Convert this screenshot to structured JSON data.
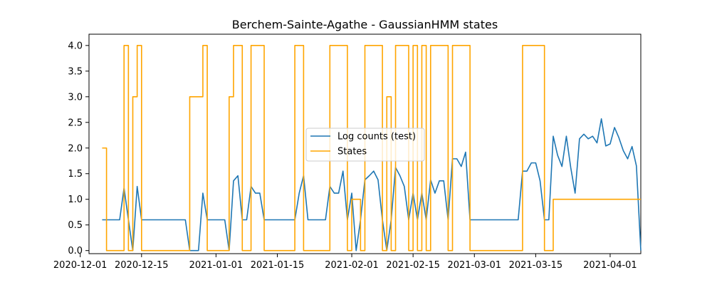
{
  "chart_data": {
    "type": "line",
    "title": "Berchem-Sainte-Agathe - GaussianHMM states",
    "xlabel": "",
    "ylabel": "",
    "xlim": [
      "2020-12-03",
      "2021-04-08"
    ],
    "ylim": [
      -0.06,
      4.22
    ],
    "grid": false,
    "legend_placement": "center",
    "x_ticks": [
      "2020-12-01",
      "2020-12-15",
      "2021-01-01",
      "2021-01-15",
      "2021-02-01",
      "2021-02-15",
      "2021-03-01",
      "2021-03-15",
      "2021-04-01"
    ],
    "y_ticks": [
      "0.0",
      "0.5",
      "1.0",
      "1.5",
      "2.0",
      "2.5",
      "3.0",
      "3.5",
      "4.0"
    ],
    "series": [
      {
        "name": "Log counts (test)",
        "color": "#1f77b4",
        "style": "line",
        "points": [
          [
            "2020-12-06",
            0.6
          ],
          [
            "2020-12-07",
            0.6
          ],
          [
            "2020-12-08",
            0.6
          ],
          [
            "2020-12-09",
            0.6
          ],
          [
            "2020-12-10",
            0.6
          ],
          [
            "2020-12-11",
            1.22
          ],
          [
            "2020-12-12",
            0.6
          ],
          [
            "2020-12-13",
            0.0
          ],
          [
            "2020-12-14",
            1.25
          ],
          [
            "2020-12-15",
            0.6
          ],
          [
            "2020-12-16",
            0.6
          ],
          [
            "2020-12-17",
            0.6
          ],
          [
            "2020-12-18",
            0.6
          ],
          [
            "2020-12-19",
            0.6
          ],
          [
            "2020-12-20",
            0.6
          ],
          [
            "2020-12-21",
            0.6
          ],
          [
            "2020-12-22",
            0.6
          ],
          [
            "2020-12-23",
            0.6
          ],
          [
            "2020-12-24",
            0.6
          ],
          [
            "2020-12-25",
            0.6
          ],
          [
            "2020-12-26",
            0.0
          ],
          [
            "2020-12-27",
            0.0
          ],
          [
            "2020-12-28",
            0.0
          ],
          [
            "2020-12-29",
            1.12
          ],
          [
            "2020-12-30",
            0.6
          ],
          [
            "2020-12-31",
            0.6
          ],
          [
            "2021-01-01",
            0.6
          ],
          [
            "2021-01-02",
            0.6
          ],
          [
            "2021-01-03",
            0.6
          ],
          [
            "2021-01-04",
            0.0
          ],
          [
            "2021-01-05",
            1.36
          ],
          [
            "2021-01-06",
            1.46
          ],
          [
            "2021-01-07",
            0.6
          ],
          [
            "2021-01-08",
            0.6
          ],
          [
            "2021-01-09",
            1.25
          ],
          [
            "2021-01-10",
            1.12
          ],
          [
            "2021-01-11",
            1.12
          ],
          [
            "2021-01-12",
            0.6
          ],
          [
            "2021-01-13",
            0.6
          ],
          [
            "2021-01-14",
            0.6
          ],
          [
            "2021-01-15",
            0.6
          ],
          [
            "2021-01-16",
            0.6
          ],
          [
            "2021-01-17",
            0.6
          ],
          [
            "2021-01-18",
            0.6
          ],
          [
            "2021-01-19",
            0.6
          ],
          [
            "2021-01-20",
            1.12
          ],
          [
            "2021-01-21",
            1.46
          ],
          [
            "2021-01-22",
            0.6
          ],
          [
            "2021-01-23",
            0.6
          ],
          [
            "2021-01-24",
            0.6
          ],
          [
            "2021-01-25",
            0.6
          ],
          [
            "2021-01-26",
            0.6
          ],
          [
            "2021-01-27",
            1.25
          ],
          [
            "2021-01-28",
            1.12
          ],
          [
            "2021-01-29",
            1.12
          ],
          [
            "2021-01-30",
            1.55
          ],
          [
            "2021-01-31",
            0.6
          ],
          [
            "2021-02-01",
            1.12
          ],
          [
            "2021-02-02",
            0.0
          ],
          [
            "2021-02-03",
            0.6
          ],
          [
            "2021-02-04",
            1.38
          ],
          [
            "2021-02-05",
            1.46
          ],
          [
            "2021-02-06",
            1.55
          ],
          [
            "2021-02-07",
            1.38
          ],
          [
            "2021-02-08",
            0.6
          ],
          [
            "2021-02-09",
            0.0
          ],
          [
            "2021-02-10",
            0.6
          ],
          [
            "2021-02-11",
            1.62
          ],
          [
            "2021-02-12",
            1.46
          ],
          [
            "2021-02-13",
            1.25
          ],
          [
            "2021-02-14",
            0.6
          ],
          [
            "2021-02-15",
            1.12
          ],
          [
            "2021-02-16",
            0.6
          ],
          [
            "2021-02-17",
            1.12
          ],
          [
            "2021-02-18",
            0.6
          ],
          [
            "2021-02-19",
            1.38
          ],
          [
            "2021-02-20",
            1.12
          ],
          [
            "2021-02-21",
            1.36
          ],
          [
            "2021-02-22",
            1.36
          ],
          [
            "2021-02-23",
            0.6
          ],
          [
            "2021-02-24",
            1.79
          ],
          [
            "2021-02-25",
            1.79
          ],
          [
            "2021-02-26",
            1.64
          ],
          [
            "2021-02-27",
            1.92
          ],
          [
            "2021-02-28",
            0.6
          ],
          [
            "2021-03-01",
            0.6
          ],
          [
            "2021-03-02",
            0.6
          ],
          [
            "2021-03-03",
            0.6
          ],
          [
            "2021-03-04",
            0.6
          ],
          [
            "2021-03-05",
            0.6
          ],
          [
            "2021-03-06",
            0.6
          ],
          [
            "2021-03-07",
            0.6
          ],
          [
            "2021-03-08",
            0.6
          ],
          [
            "2021-03-09",
            0.6
          ],
          [
            "2021-03-10",
            0.6
          ],
          [
            "2021-03-11",
            0.6
          ],
          [
            "2021-03-12",
            1.55
          ],
          [
            "2021-03-13",
            1.55
          ],
          [
            "2021-03-14",
            1.71
          ],
          [
            "2021-03-15",
            1.71
          ],
          [
            "2021-03-16",
            1.36
          ],
          [
            "2021-03-17",
            0.6
          ],
          [
            "2021-03-18",
            0.6
          ],
          [
            "2021-03-19",
            2.23
          ],
          [
            "2021-03-20",
            1.86
          ],
          [
            "2021-03-21",
            1.64
          ],
          [
            "2021-03-22",
            2.23
          ],
          [
            "2021-03-23",
            1.62
          ],
          [
            "2021-03-24",
            1.12
          ],
          [
            "2021-03-25",
            2.18
          ],
          [
            "2021-03-26",
            2.27
          ],
          [
            "2021-03-27",
            2.18
          ],
          [
            "2021-03-28",
            2.23
          ],
          [
            "2021-03-29",
            2.1
          ],
          [
            "2021-03-30",
            2.57
          ],
          [
            "2021-03-31",
            2.04
          ],
          [
            "2021-04-01",
            2.08
          ],
          [
            "2021-04-02",
            2.4
          ],
          [
            "2021-04-03",
            2.2
          ],
          [
            "2021-04-04",
            1.95
          ],
          [
            "2021-04-05",
            1.79
          ],
          [
            "2021-04-06",
            2.03
          ],
          [
            "2021-04-07",
            1.65
          ],
          [
            "2021-04-08",
            0.0
          ]
        ]
      },
      {
        "name": "States",
        "color": "#ffa500",
        "style": "step-post",
        "points": [
          [
            "2020-12-06",
            2
          ],
          [
            "2020-12-07",
            0
          ],
          [
            "2020-12-11",
            4
          ],
          [
            "2020-12-12",
            0
          ],
          [
            "2020-12-13",
            3
          ],
          [
            "2020-12-14",
            4
          ],
          [
            "2020-12-15",
            0
          ],
          [
            "2020-12-26",
            3
          ],
          [
            "2020-12-29",
            4
          ],
          [
            "2020-12-30",
            0
          ],
          [
            "2021-01-04",
            3
          ],
          [
            "2021-01-05",
            4
          ],
          [
            "2021-01-07",
            0
          ],
          [
            "2021-01-09",
            4
          ],
          [
            "2021-01-12",
            0
          ],
          [
            "2021-01-19",
            4
          ],
          [
            "2021-01-21",
            0
          ],
          [
            "2021-01-27",
            4
          ],
          [
            "2021-01-31",
            0
          ],
          [
            "2021-02-01",
            1
          ],
          [
            "2021-02-03",
            0
          ],
          [
            "2021-02-04",
            4
          ],
          [
            "2021-02-08",
            0
          ],
          [
            "2021-02-09",
            3
          ],
          [
            "2021-02-10",
            0
          ],
          [
            "2021-02-11",
            4
          ],
          [
            "2021-02-14",
            0
          ],
          [
            "2021-02-15",
            4
          ],
          [
            "2021-02-16",
            0
          ],
          [
            "2021-02-17",
            4
          ],
          [
            "2021-02-18",
            0
          ],
          [
            "2021-02-19",
            4
          ],
          [
            "2021-02-23",
            0
          ],
          [
            "2021-02-24",
            4
          ],
          [
            "2021-02-28",
            0
          ],
          [
            "2021-03-12",
            4
          ],
          [
            "2021-03-17",
            0
          ],
          [
            "2021-03-19",
            1
          ],
          [
            "2021-04-08",
            1
          ]
        ]
      }
    ]
  }
}
